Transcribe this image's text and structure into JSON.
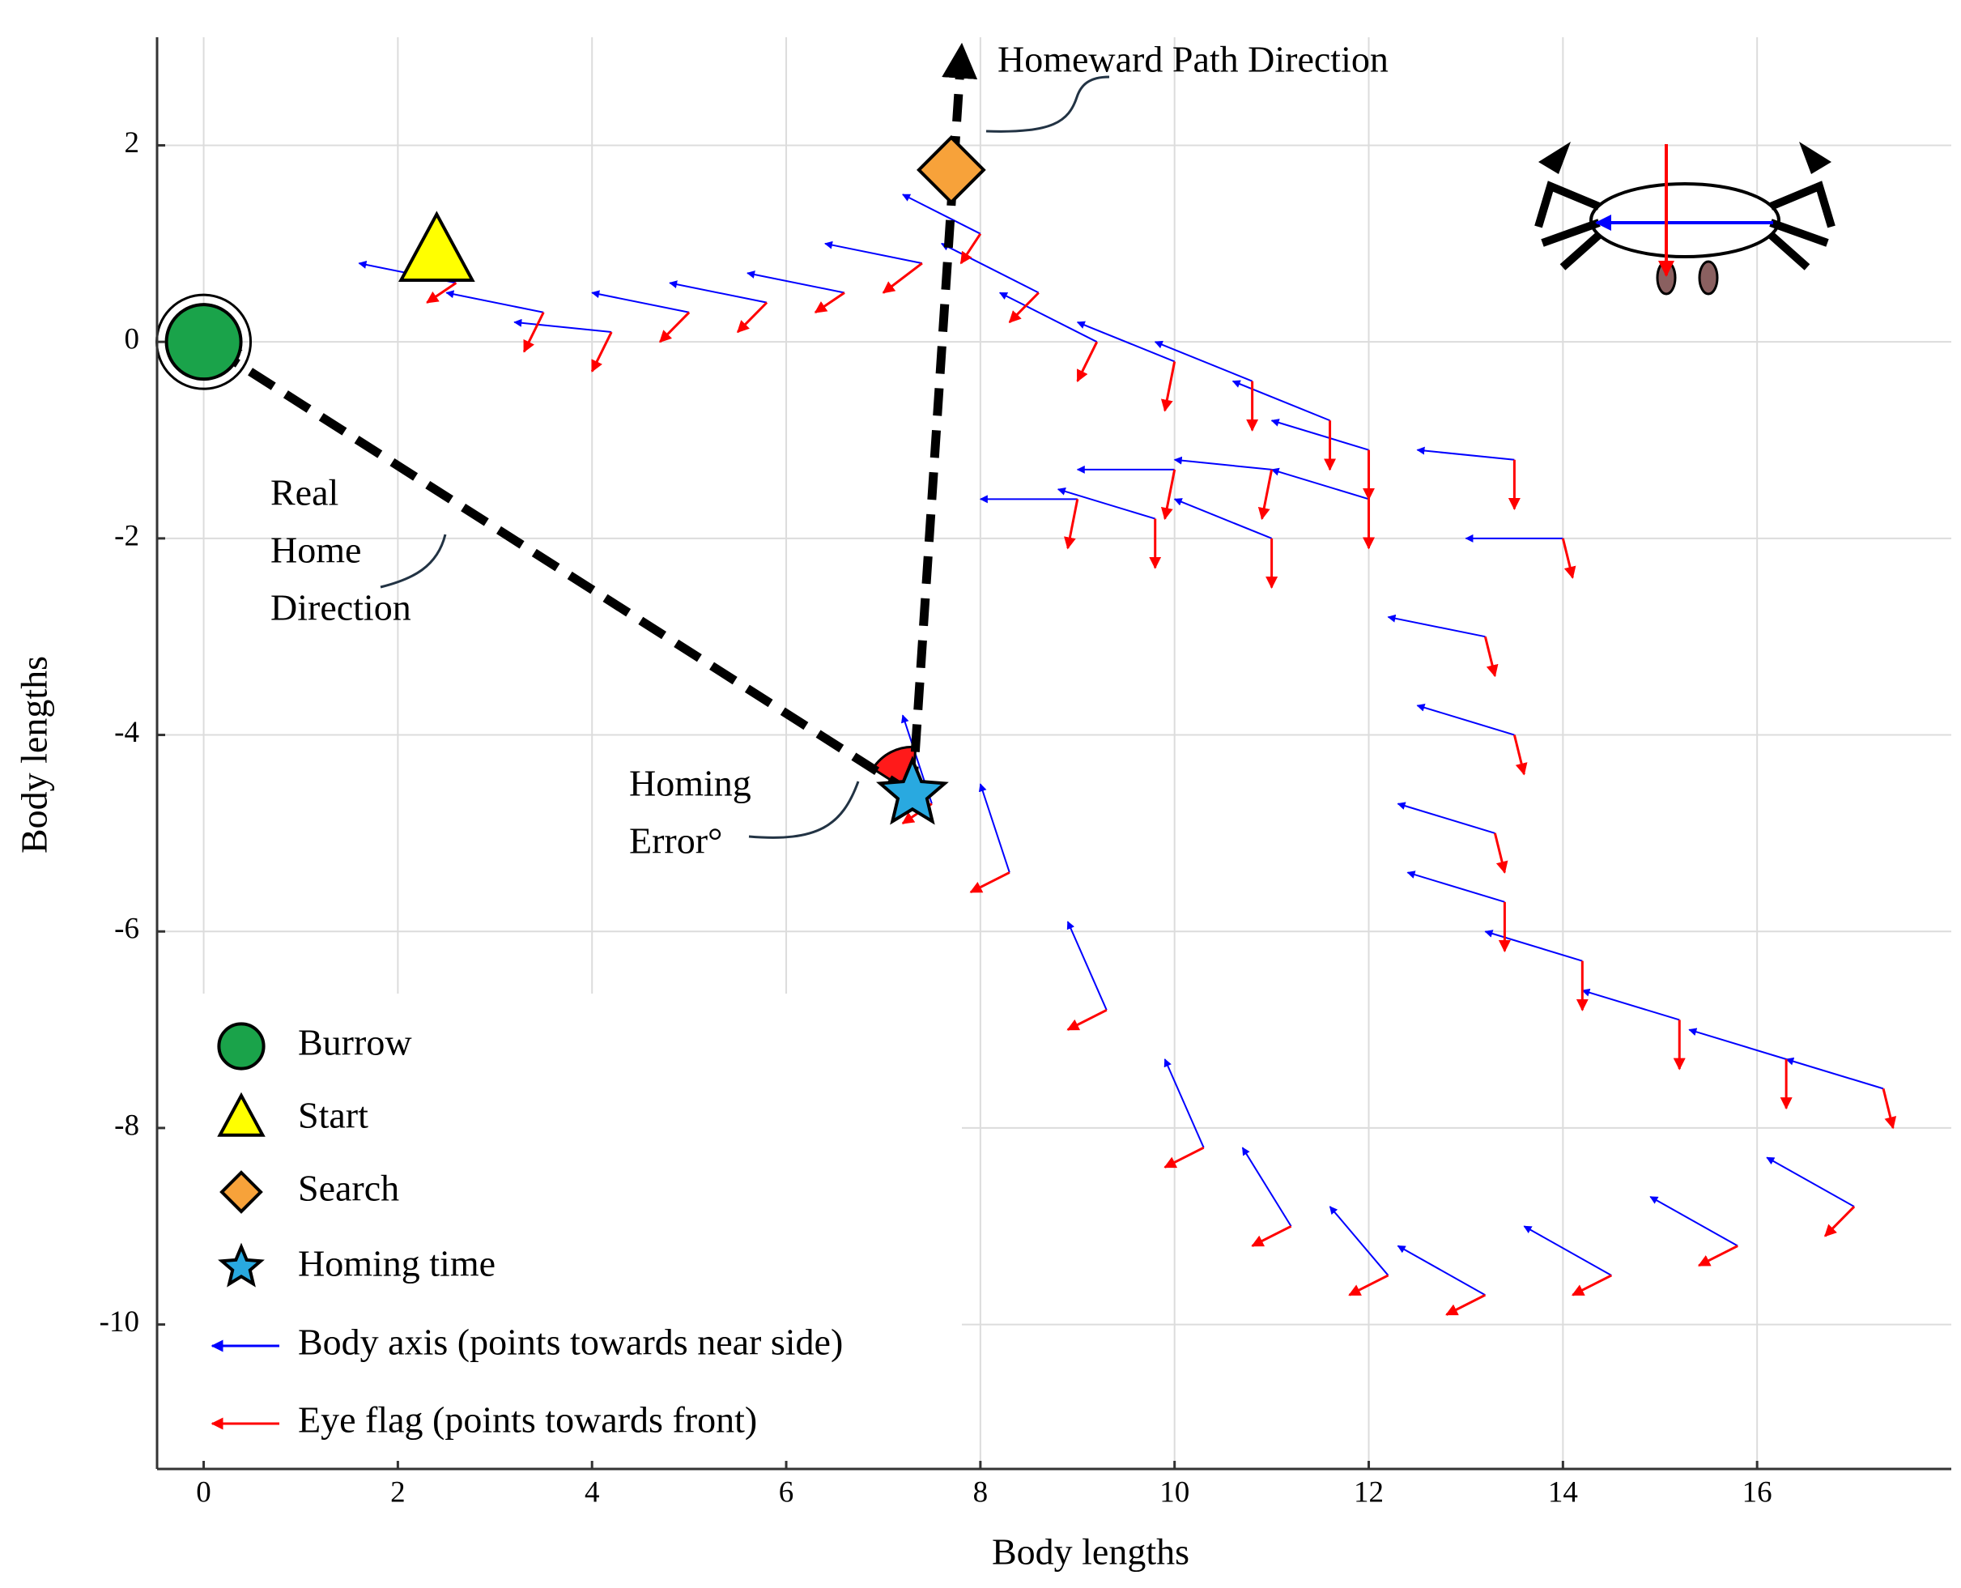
{
  "chart_data": {
    "type": "quiver",
    "xlabel": "Body lengths",
    "ylabel": "Body lengths",
    "xlim": [
      -0.48,
      18
    ],
    "ylim": [
      -11.47,
      3.1
    ],
    "xticks": [
      0,
      2,
      4,
      6,
      8,
      10,
      12,
      14,
      16
    ],
    "yticks": [
      -10,
      -8,
      -6,
      -4,
      -2,
      0,
      2
    ],
    "grid": true,
    "markers": [
      {
        "name": "Burrow",
        "shape": "circle",
        "color": "#1aa34a",
        "x": 0,
        "y": 0
      },
      {
        "name": "Start",
        "shape": "triangle",
        "color": "#ffff00",
        "x": 2.4,
        "y": 0.9
      },
      {
        "name": "Search",
        "shape": "diamond",
        "color": "#f7a23a",
        "x": 7.7,
        "y": 1.75
      },
      {
        "name": "Homing time",
        "shape": "star",
        "color": "#29a9e0",
        "x": 7.3,
        "y": -4.6
      }
    ],
    "series": [
      {
        "name": "Body axis (points towards near side)",
        "color": "#0000ff",
        "x": [
          2.6,
          3.5,
          4.2,
          5.0,
          5.8,
          6.6,
          7.4,
          8.0,
          8.6,
          9.2,
          10.0,
          10.8,
          11.6,
          12.0,
          11.0,
          10.0,
          9.0,
          9.8,
          11.0,
          12.0,
          13.5,
          14.0,
          13.2,
          13.5,
          13.3,
          13.4,
          14.2,
          15.2,
          16.3,
          17.3,
          17.0,
          15.8,
          14.5,
          13.2,
          12.2,
          11.2,
          10.3,
          9.3,
          8.3,
          7.5
        ],
        "y": [
          0.6,
          0.3,
          0.1,
          0.3,
          0.4,
          0.5,
          0.8,
          1.1,
          0.5,
          0.0,
          -0.2,
          -0.4,
          -0.8,
          -1.1,
          -1.3,
          -1.3,
          -1.6,
          -1.8,
          -2.0,
          -1.6,
          -1.2,
          -2.0,
          -3.0,
          -4.0,
          -5.0,
          -5.7,
          -6.3,
          -6.9,
          -7.3,
          -7.6,
          -8.8,
          -9.2,
          -9.5,
          -9.7,
          -9.5,
          -9.0,
          -8.2,
          -6.8,
          -5.4,
          -4.7
        ],
        "u": [
          -1.0,
          -1.0,
          -1.0,
          -1.0,
          -1.0,
          -1.0,
          -1.0,
          -0.8,
          -1.0,
          -1.0,
          -1.0,
          -1.0,
          -1.0,
          -1.0,
          -1.0,
          -1.0,
          -1.0,
          -1.0,
          -1.0,
          -1.0,
          -1.0,
          -1.0,
          -1.0,
          -1.0,
          -1.0,
          -1.0,
          -1.0,
          -1.0,
          -1.0,
          -1.0,
          -0.9,
          -0.9,
          -0.9,
          -0.9,
          -0.6,
          -0.5,
          -0.4,
          -0.4,
          -0.3,
          -0.3
        ],
        "v": [
          0.2,
          0.2,
          0.1,
          0.2,
          0.2,
          0.2,
          0.2,
          0.4,
          0.5,
          0.5,
          0.4,
          0.4,
          0.4,
          0.3,
          0.1,
          0.0,
          0.0,
          0.3,
          0.4,
          0.3,
          0.1,
          0.0,
          0.2,
          0.3,
          0.3,
          0.3,
          0.3,
          0.3,
          0.3,
          0.3,
          0.5,
          0.5,
          0.5,
          0.5,
          0.7,
          0.8,
          0.9,
          0.9,
          0.9,
          0.9
        ]
      },
      {
        "name": "Eye flag (points towards front)",
        "color": "#ff0000",
        "x": [
          2.6,
          3.5,
          4.2,
          5.0,
          5.8,
          6.6,
          7.4,
          8.0,
          8.6,
          9.2,
          10.0,
          10.8,
          11.6,
          12.0,
          11.0,
          10.0,
          9.0,
          9.8,
          11.0,
          12.0,
          13.5,
          14.0,
          13.2,
          13.5,
          13.3,
          13.4,
          14.2,
          15.2,
          16.3,
          17.3,
          17.0,
          15.8,
          14.5,
          13.2,
          12.2,
          11.2,
          10.3,
          9.3,
          8.3,
          7.5
        ],
        "y": [
          0.6,
          0.3,
          0.1,
          0.3,
          0.4,
          0.5,
          0.8,
          1.1,
          0.5,
          0.0,
          -0.2,
          -0.4,
          -0.8,
          -1.1,
          -1.3,
          -1.3,
          -1.6,
          -1.8,
          -2.0,
          -1.6,
          -1.2,
          -2.0,
          -3.0,
          -4.0,
          -5.0,
          -5.7,
          -6.3,
          -6.9,
          -7.3,
          -7.6,
          -8.8,
          -9.2,
          -9.5,
          -9.7,
          -9.5,
          -9.0,
          -8.2,
          -6.8,
          -5.4,
          -4.7
        ],
        "u": [
          -0.3,
          -0.2,
          -0.2,
          -0.3,
          -0.3,
          -0.3,
          -0.4,
          -0.2,
          -0.3,
          -0.2,
          -0.1,
          0.0,
          0.0,
          0.0,
          -0.1,
          -0.1,
          -0.1,
          0.0,
          0.0,
          0.0,
          0.0,
          0.1,
          0.1,
          0.1,
          0.1,
          0.0,
          0.0,
          0.0,
          0.0,
          0.1,
          -0.3,
          -0.4,
          -0.4,
          -0.4,
          -0.4,
          -0.4,
          -0.4,
          -0.4,
          -0.4,
          -0.3
        ],
        "v": [
          -0.2,
          -0.4,
          -0.4,
          -0.3,
          -0.3,
          -0.2,
          -0.3,
          -0.3,
          -0.3,
          -0.4,
          -0.5,
          -0.5,
          -0.5,
          -0.5,
          -0.5,
          -0.5,
          -0.5,
          -0.5,
          -0.5,
          -0.5,
          -0.5,
          -0.4,
          -0.4,
          -0.4,
          -0.4,
          -0.5,
          -0.5,
          -0.5,
          -0.5,
          -0.4,
          -0.3,
          -0.2,
          -0.2,
          -0.2,
          -0.2,
          -0.2,
          -0.2,
          -0.2,
          -0.2,
          -0.2
        ]
      }
    ],
    "paths": [
      {
        "x": [
          7.3,
          7.8
        ],
        "y": [
          -4.6,
          2.9
        ]
      },
      {
        "x": [
          7.3,
          0
        ],
        "y": [
          -4.6,
          0
        ]
      }
    ],
    "annotations": [
      {
        "lines": [
          "Homeward Path Direction"
        ]
      },
      {
        "lines": [
          "Real",
          "Home",
          "Direction"
        ]
      },
      {
        "lines": [
          "Homing",
          "Error°"
        ]
      }
    ]
  }
}
